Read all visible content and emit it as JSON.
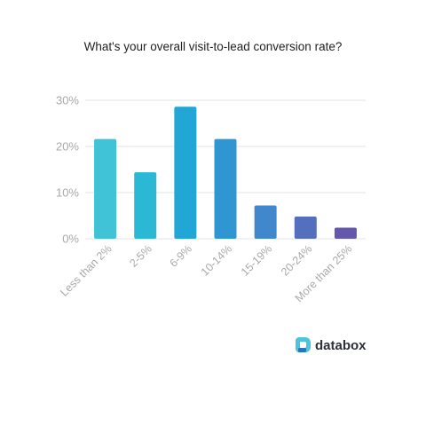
{
  "chart_data": {
    "type": "bar",
    "title": "What's your overall visit-to-lead conversion rate?",
    "xlabel": "",
    "ylabel": "",
    "categories": [
      "Less than 2%",
      "2-5%",
      "6-9%",
      "10-14%",
      "15-19%",
      "20-24%",
      "More than 25%"
    ],
    "values": [
      21.6,
      14.4,
      28.6,
      21.6,
      7.2,
      4.8,
      2.4
    ],
    "ylim": [
      0,
      30
    ],
    "yticks": [
      0,
      10,
      20,
      30
    ],
    "ytick_labels": [
      "0%",
      "10%",
      "20%",
      "30%"
    ],
    "grid": true,
    "bar_colors": [
      "#40c3d6",
      "#2ab8d4",
      "#21a6d6",
      "#2f96d2",
      "#4087cc",
      "#536fbd",
      "#6457ac"
    ]
  },
  "brand": {
    "name": "databox",
    "icon": "databox-logo-icon",
    "colors": {
      "icon_light": "#4ec4dc",
      "icon_dark": "#2476c2",
      "text": "#2b2f36"
    }
  }
}
